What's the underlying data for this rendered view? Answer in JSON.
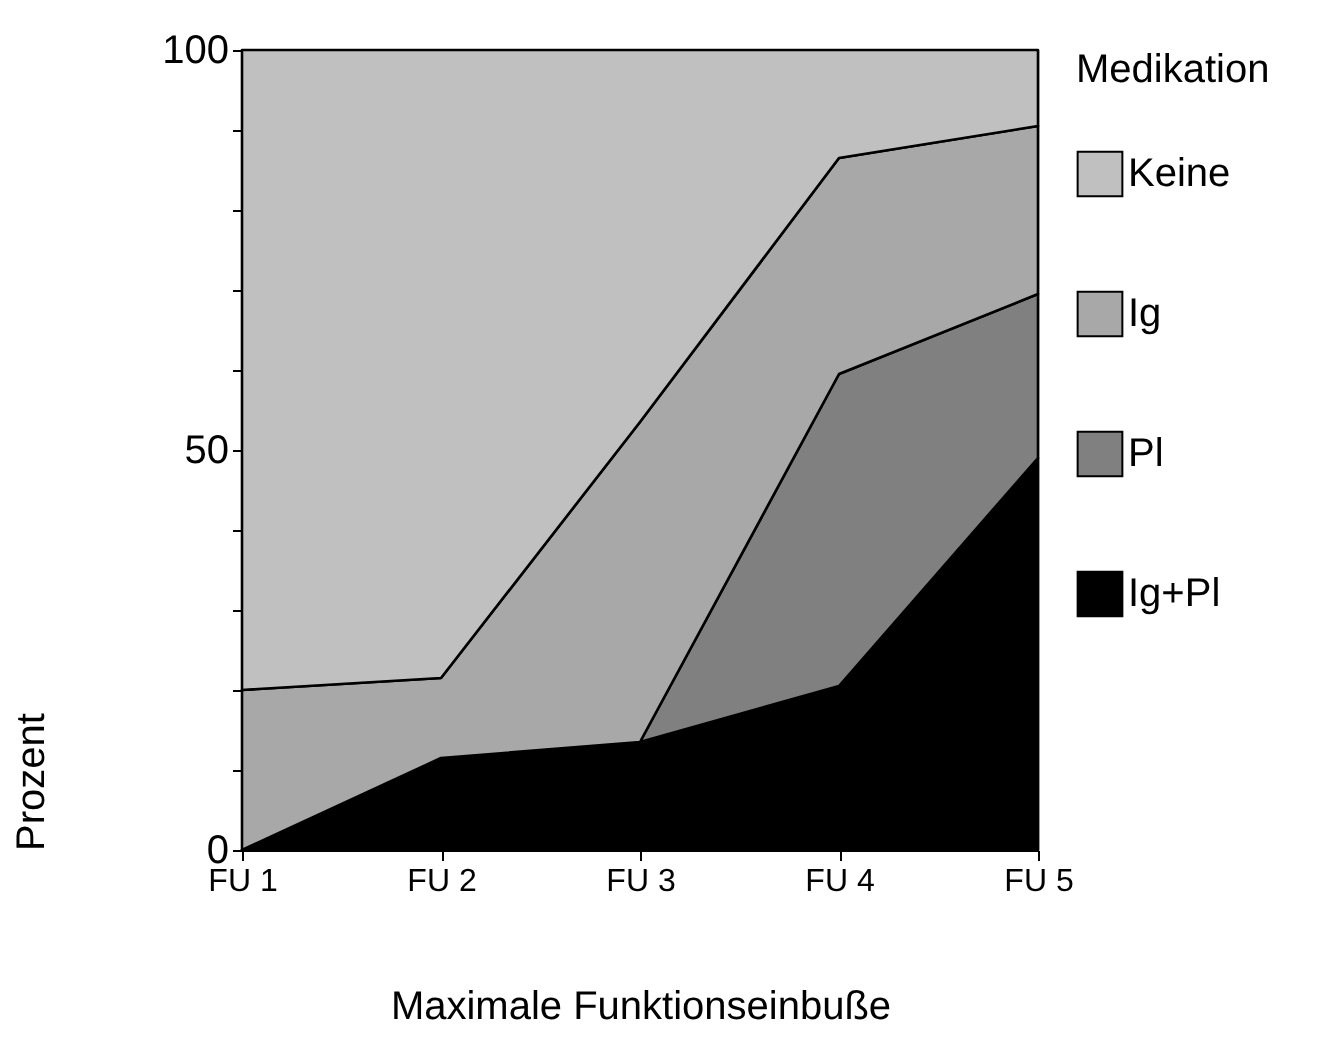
{
  "chart_data": {
    "type": "area",
    "stacked": true,
    "xlabel": "Maximale Funktionseinbuße",
    "ylabel": "Prozent",
    "legend_title": "Medikation",
    "legend": "right",
    "categories": [
      "FU 1",
      "FU 2",
      "FU 3",
      "FU 4",
      "FU 5"
    ],
    "ylim": [
      0,
      100
    ],
    "yticks": [
      0,
      {
        "value": 10,
        "label": null
      },
      {
        "value": 20,
        "label": null
      },
      {
        "value": 30,
        "label": null
      },
      {
        "value": 40,
        "label": null
      },
      50,
      {
        "value": 60,
        "label": null
      },
      {
        "value": 70,
        "label": null
      },
      {
        "value": 80,
        "label": null
      },
      {
        "value": 90,
        "label": null
      },
      100
    ],
    "series": [
      {
        "name": "Ig+Pl",
        "color": "#000000",
        "values": [
          0,
          11.5,
          13.5,
          20.5,
          49
        ]
      },
      {
        "name": "Pl",
        "color": "#808080",
        "values": [
          0,
          0,
          0,
          39,
          20.5
        ]
      },
      {
        "name": "Ig",
        "color": "#a8a8a8",
        "values": [
          20,
          10,
          40,
          27,
          21
        ]
      },
      {
        "name": "Keine",
        "color": "#c0c0c0",
        "values": [
          80,
          78.5,
          46.5,
          13.5,
          9.5
        ]
      }
    ]
  }
}
